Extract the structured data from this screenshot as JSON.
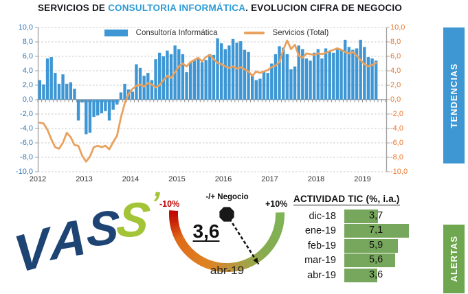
{
  "title": {
    "part1": "SERVICIOS DE ",
    "part2": "CONSULTORIA INFORMÁTICA",
    "part3": ". EVOLUCION CIFRA DE NEGOCIO"
  },
  "banners": {
    "tendencias": "TENDENCIAS",
    "alertas": "ALERTAS"
  },
  "colors": {
    "bar_blue": "#3E97D4",
    "line_orange": "#E9A15D",
    "left_axis_text": "#2E75B6",
    "right_axis_text": "#E9762E",
    "banner_blue": "#3E96D2",
    "banner_green": "#6FA750",
    "table_bar_green": "#77A75C",
    "gauge_red": "#C00000",
    "gauge_green": "#7FB457",
    "title_highlight_blue": "#2E9BD6",
    "logo_navy": "#1D4473",
    "logo_lime": "#A3C437"
  },
  "chart_data": {
    "type": "bar",
    "note": "monthly data Jan-2012 to Apr-2019, % year-on-year",
    "x_year_labels": [
      "2012",
      "2013",
      "2014",
      "2015",
      "2016",
      "2017",
      "2018",
      "2019"
    ],
    "months_per_year": 12,
    "ylim": [
      -10,
      10
    ],
    "ytick_step": 2,
    "grid": true,
    "legend_position": "top-center",
    "series": [
      {
        "name": "Consultoría Informática",
        "type": "bar",
        "color": "#3E97D4",
        "values": [
          2.7,
          2.1,
          5.7,
          5.9,
          3.7,
          2.2,
          3.5,
          2.2,
          2.4,
          1.5,
          -2.9,
          -0.4,
          -4.8,
          -4.6,
          -2.4,
          -2.2,
          -1.9,
          -1.6,
          -2.9,
          -1.4,
          -0.7,
          1.0,
          2.2,
          1.4,
          1.1,
          4.9,
          4.4,
          3.3,
          3.7,
          2.7,
          5.6,
          6.5,
          6.0,
          6.8,
          6.3,
          7.5,
          7.0,
          6.3,
          3.8,
          5.1,
          5.4,
          5.7,
          5.2,
          5.5,
          6.3,
          6.2,
          8.5,
          7.8,
          7.0,
          7.5,
          8.4,
          7.9,
          8.1,
          6.9,
          6.6,
          3.3,
          2.7,
          2.9,
          4.0,
          3.7,
          5.0,
          6.3,
          7.4,
          7.2,
          6.3,
          4.2,
          4.6,
          7.5,
          7.0,
          5.7,
          5.4,
          6.5,
          7.0,
          5.7,
          7.1,
          6.7,
          6.5,
          7.2,
          6.9,
          8.3,
          7.3,
          6.9,
          7.1,
          8.3,
          7.3,
          5.9,
          5.7,
          5.4
        ]
      },
      {
        "name": "Servicios (Total)",
        "type": "line",
        "color": "#E9A15D",
        "values": [
          -3.2,
          -3.3,
          -4.2,
          -5.5,
          -6.6,
          -6.8,
          -6.0,
          -4.6,
          -5.2,
          -6.3,
          -6.4,
          -7.8,
          -8.6,
          -7.9,
          -6.6,
          -6.4,
          -6.6,
          -6.4,
          -6.9,
          -5.9,
          -5.0,
          -2.5,
          -0.5,
          0.8,
          1.5,
          1.9,
          2.1,
          1.8,
          2.3,
          2.1,
          1.7,
          2.0,
          2.7,
          3.3,
          3.0,
          3.8,
          4.6,
          5.0,
          4.6,
          5.2,
          5.5,
          5.8,
          5.3,
          5.9,
          6.2,
          5.6,
          5.1,
          4.9,
          4.6,
          4.4,
          4.6,
          4.3,
          4.5,
          4.2,
          3.9,
          3.3,
          3.9,
          3.7,
          3.9,
          4.1,
          4.5,
          4.7,
          5.2,
          6.9,
          8.2,
          7.0,
          7.6,
          6.1,
          5.8,
          6.4,
          6.3,
          6.2,
          6.4,
          6.3,
          6.5,
          6.7,
          6.9,
          7.1,
          6.9,
          6.6,
          6.4,
          6.6,
          6.1,
          5.5,
          4.9,
          4.6,
          4.8,
          5.1
        ]
      }
    ]
  },
  "gauge": {
    "title": "-/+ Negocio",
    "min_label": "-10%",
    "max_label": "+10%",
    "min": -10,
    "max": 10,
    "value": 3.6,
    "value_label": "3,6",
    "period": "abr-19"
  },
  "tic_table": {
    "title": "ACTIVIDAD TIC (%, i.a.)",
    "rows": [
      {
        "label": "dic-18",
        "value_label": "3,7",
        "value": 3.7
      },
      {
        "label": "ene-19",
        "value_label": "7,1",
        "value": 7.1
      },
      {
        "label": "feb-19",
        "value_label": "5,9",
        "value": 5.9
      },
      {
        "label": "mar-19",
        "value_label": "5,6",
        "value": 5.6
      },
      {
        "label": "abr-19",
        "value_label": "3,6",
        "value": 3.6
      }
    ]
  },
  "logo": {
    "letters": [
      "V",
      "A",
      "S",
      "S"
    ],
    "apostrophe": "’"
  }
}
